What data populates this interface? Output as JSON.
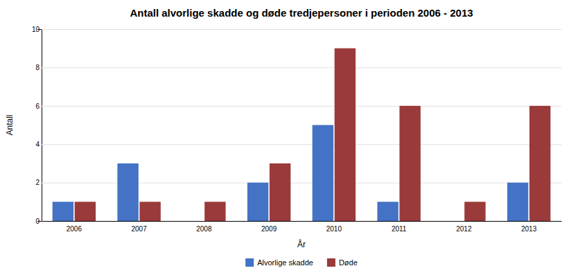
{
  "chart_data": {
    "type": "bar",
    "title": "Antall alvorlige skadde og døde tredjepersoner i perioden 2006 - 2013",
    "xlabel": "År",
    "ylabel": "Antall",
    "categories": [
      "2006",
      "2007",
      "2008",
      "2009",
      "2010",
      "2011",
      "2012",
      "2013"
    ],
    "series": [
      {
        "name": "Alvorlige skadde",
        "color": "#4472C4",
        "values": [
          1,
          3,
          0,
          2,
          5,
          1,
          0,
          2
        ]
      },
      {
        "name": "Døde",
        "color": "#9B3A3A",
        "values": [
          1,
          1,
          1,
          3,
          9,
          6,
          1,
          6
        ]
      }
    ],
    "ylim": [
      0,
      10
    ],
    "yticks": [
      0,
      2,
      4,
      6,
      8,
      10
    ],
    "grid": true,
    "legend": "bottom"
  }
}
